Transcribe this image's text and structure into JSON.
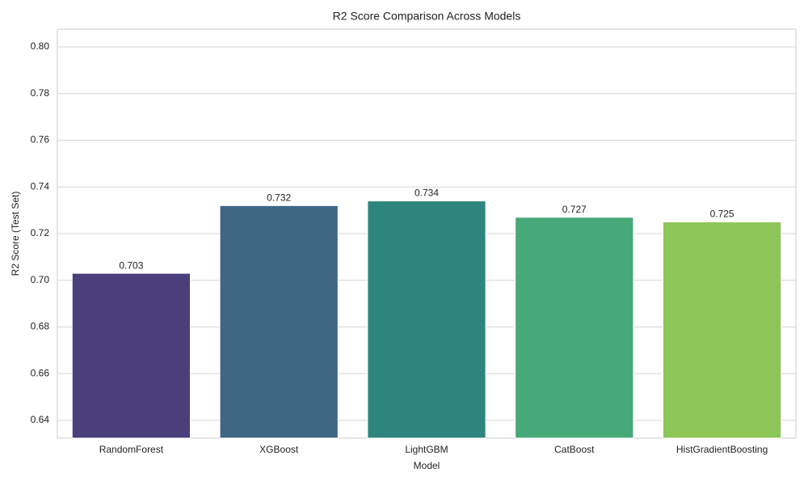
{
  "chart_data": {
    "type": "bar",
    "title": "R2 Score Comparison Across Models",
    "x_label": "Model",
    "y_label": "R2 Score (Test Set)",
    "categories": [
      "RandomForest",
      "XGBoost",
      "LightGBM",
      "CatBoost",
      "HistGradientBoosting"
    ],
    "values": [
      0.703,
      0.732,
      0.734,
      0.727,
      0.725
    ],
    "colors": [
      "#4a3f7b",
      "#3e6784",
      "#2e857e",
      "#47a977",
      "#8dc556"
    ],
    "ylim": [
      0.6324,
      0.8076
    ],
    "yticks": [
      0.64,
      0.66,
      0.68,
      {
        "value": 0.7,
        "label": "0.70"
      },
      0.72,
      0.74,
      0.76,
      0.78,
      {
        "value": 0.8,
        "label": "0.80"
      }
    ],
    "grid": true
  }
}
